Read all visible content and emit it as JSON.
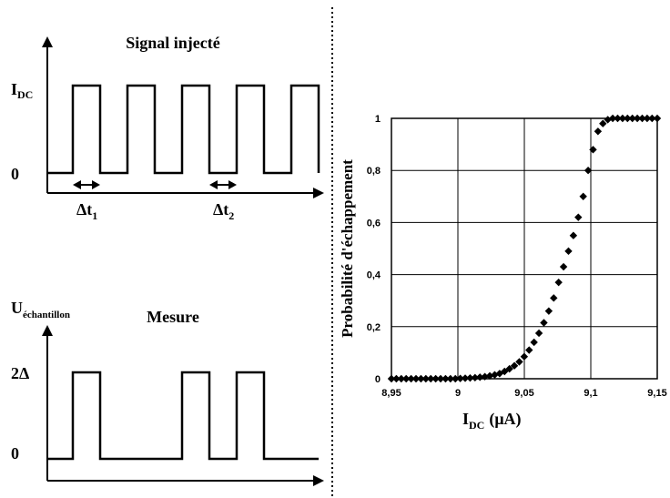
{
  "left_panel": {
    "top": {
      "title": "Signal injecté",
      "y_high_label_main": "I",
      "y_high_label_sub": "DC",
      "y_zero_label": "0",
      "dt1_main": "Δt",
      "dt1_sub": "1",
      "dt2_main": "Δt",
      "dt2_sub": "2"
    },
    "bottom": {
      "title": "Mesure",
      "y_axis_label_main": "U",
      "y_axis_label_sub": "échantillon",
      "y_high_label": "2Δ",
      "y_zero_label": "0"
    }
  },
  "chart_data": {
    "type": "scatter",
    "title": "",
    "xlabel_main": "I",
    "xlabel_sub": "DC",
    "xlabel_unit": "(μA)",
    "ylabel": "Probabilité d'échappement",
    "xlim": [
      8.95,
      9.15
    ],
    "ylim": [
      0,
      1
    ],
    "x_ticks": [
      8.95,
      9.0,
      9.05,
      9.1,
      9.15
    ],
    "x_tick_labels": [
      "8,95",
      "9",
      "9,05",
      "9,1",
      "9,15"
    ],
    "y_ticks": [
      0,
      0.2,
      0.4,
      0.6,
      0.8,
      1.0
    ],
    "y_tick_labels": [
      "0",
      "0,2",
      "0,4",
      "0,6",
      "0,8",
      "1"
    ],
    "grid": true,
    "marker": "diamond",
    "marker_color": "#000000",
    "series": [
      {
        "x": [
          8.95,
          8.9537,
          8.9574,
          8.9611,
          8.9648,
          8.9685,
          8.9722,
          8.9759,
          8.9796,
          8.9833,
          8.987,
          8.9907,
          8.9944,
          8.9981,
          9.0018,
          9.0055,
          9.0092,
          9.0129,
          9.0166,
          9.0203,
          9.024,
          9.0277,
          9.0314,
          9.0351,
          9.0388,
          9.0425,
          9.0462,
          9.0499,
          9.0536,
          9.0573,
          9.061,
          9.0647,
          9.0684,
          9.0721,
          9.0758,
          9.0795,
          9.0832,
          9.0869,
          9.0906,
          9.0943,
          9.098,
          9.1017,
          9.1054,
          9.1091,
          9.1128,
          9.1165,
          9.1202,
          9.1239,
          9.1276,
          9.1313,
          9.135,
          9.1387,
          9.1424,
          9.1461,
          9.15
        ],
        "y": [
          0,
          0,
          0,
          0,
          0,
          0,
          0,
          0,
          0,
          0,
          0,
          0,
          0,
          0,
          0.001,
          0.002,
          0.003,
          0.004,
          0.006,
          0.008,
          0.011,
          0.015,
          0.02,
          0.028,
          0.038,
          0.05,
          0.065,
          0.085,
          0.11,
          0.14,
          0.175,
          0.215,
          0.26,
          0.31,
          0.37,
          0.43,
          0.49,
          0.55,
          0.62,
          0.7,
          0.8,
          0.88,
          0.95,
          0.98,
          0.995,
          1,
          1,
          1,
          1,
          1,
          1,
          1,
          1,
          1,
          1
        ]
      }
    ]
  }
}
